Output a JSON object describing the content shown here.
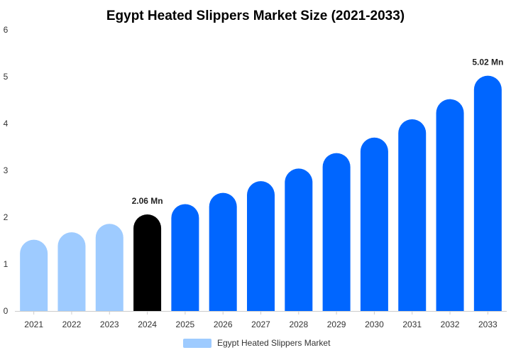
{
  "chart_data": {
    "type": "bar",
    "title": "Egypt Heated Slippers Market Size (2021-2033)",
    "categories": [
      "2021",
      "2022",
      "2023",
      "2024",
      "2025",
      "2026",
      "2027",
      "2028",
      "2029",
      "2030",
      "2031",
      "2032",
      "2033"
    ],
    "series": [
      {
        "name": "Egypt Heated Slippers Market",
        "values": [
          1.52,
          1.68,
          1.86,
          2.06,
          2.28,
          2.52,
          2.77,
          3.04,
          3.37,
          3.7,
          4.09,
          4.52,
          5.02
        ]
      }
    ],
    "data_labels": [
      {
        "index": 3,
        "text": "2.06 Mn"
      },
      {
        "index": 12,
        "text": "5.02 Mn"
      }
    ],
    "ylim": [
      0,
      6
    ],
    "yticks": [
      0,
      1,
      2,
      3,
      4,
      5,
      6
    ],
    "grid": false,
    "legend_position": "bottom-center",
    "colors": {
      "historical": "#9ecbff",
      "base_year": "#000000",
      "forecast": "#0066ff",
      "axis": "#cccccc",
      "legend_swatch": "#9ecbff"
    }
  }
}
